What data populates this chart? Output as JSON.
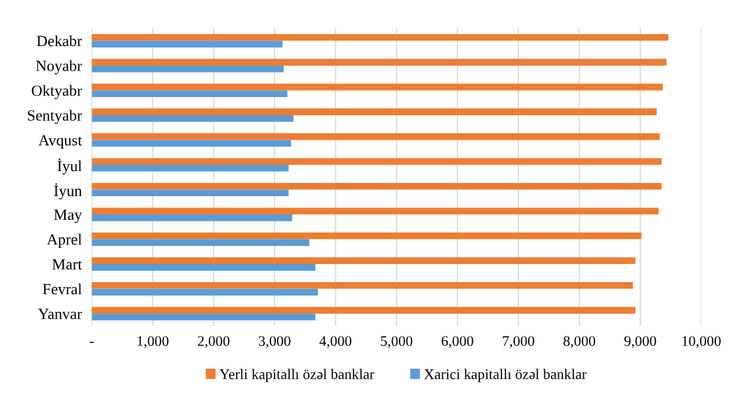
{
  "chart_data": {
    "type": "bar",
    "orientation": "horizontal",
    "categories": [
      "Dekabr",
      "Noyabr",
      "Oktyabr",
      "Sentyabr",
      "Avqust",
      "İyul",
      "İyun",
      "May",
      "Aprel",
      "Mart",
      "Fevral",
      "Yanvar"
    ],
    "series": [
      {
        "name": "Yerli kapitallı özəl banklar",
        "color": "#ed7d31",
        "values": [
          9460,
          9430,
          9370,
          9270,
          9320,
          9350,
          9350,
          9300,
          9020,
          8920,
          8880,
          8920
        ]
      },
      {
        "name": "Xarici kapitallı özəl banklar",
        "color": "#5b9bd5",
        "values": [
          3130,
          3150,
          3210,
          3310,
          3270,
          3230,
          3230,
          3290,
          3570,
          3670,
          3710,
          3670
        ]
      }
    ],
    "xlim": [
      0,
      10000
    ],
    "xticks": [
      {
        "value": 0,
        "label": "-"
      },
      {
        "value": 1000,
        "label": "1,000"
      },
      {
        "value": 2000,
        "label": "2,000"
      },
      {
        "value": 3000,
        "label": "3,000"
      },
      {
        "value": 4000,
        "label": "4,000"
      },
      {
        "value": 5000,
        "label": "5,000"
      },
      {
        "value": 6000,
        "label": "6,000"
      },
      {
        "value": 7000,
        "label": "7,000"
      },
      {
        "value": 8000,
        "label": "8,000"
      },
      {
        "value": 9000,
        "label": "9,000"
      },
      {
        "value": 10000,
        "label": "10,000"
      }
    ],
    "grid": "x",
    "legend": "bottom"
  }
}
